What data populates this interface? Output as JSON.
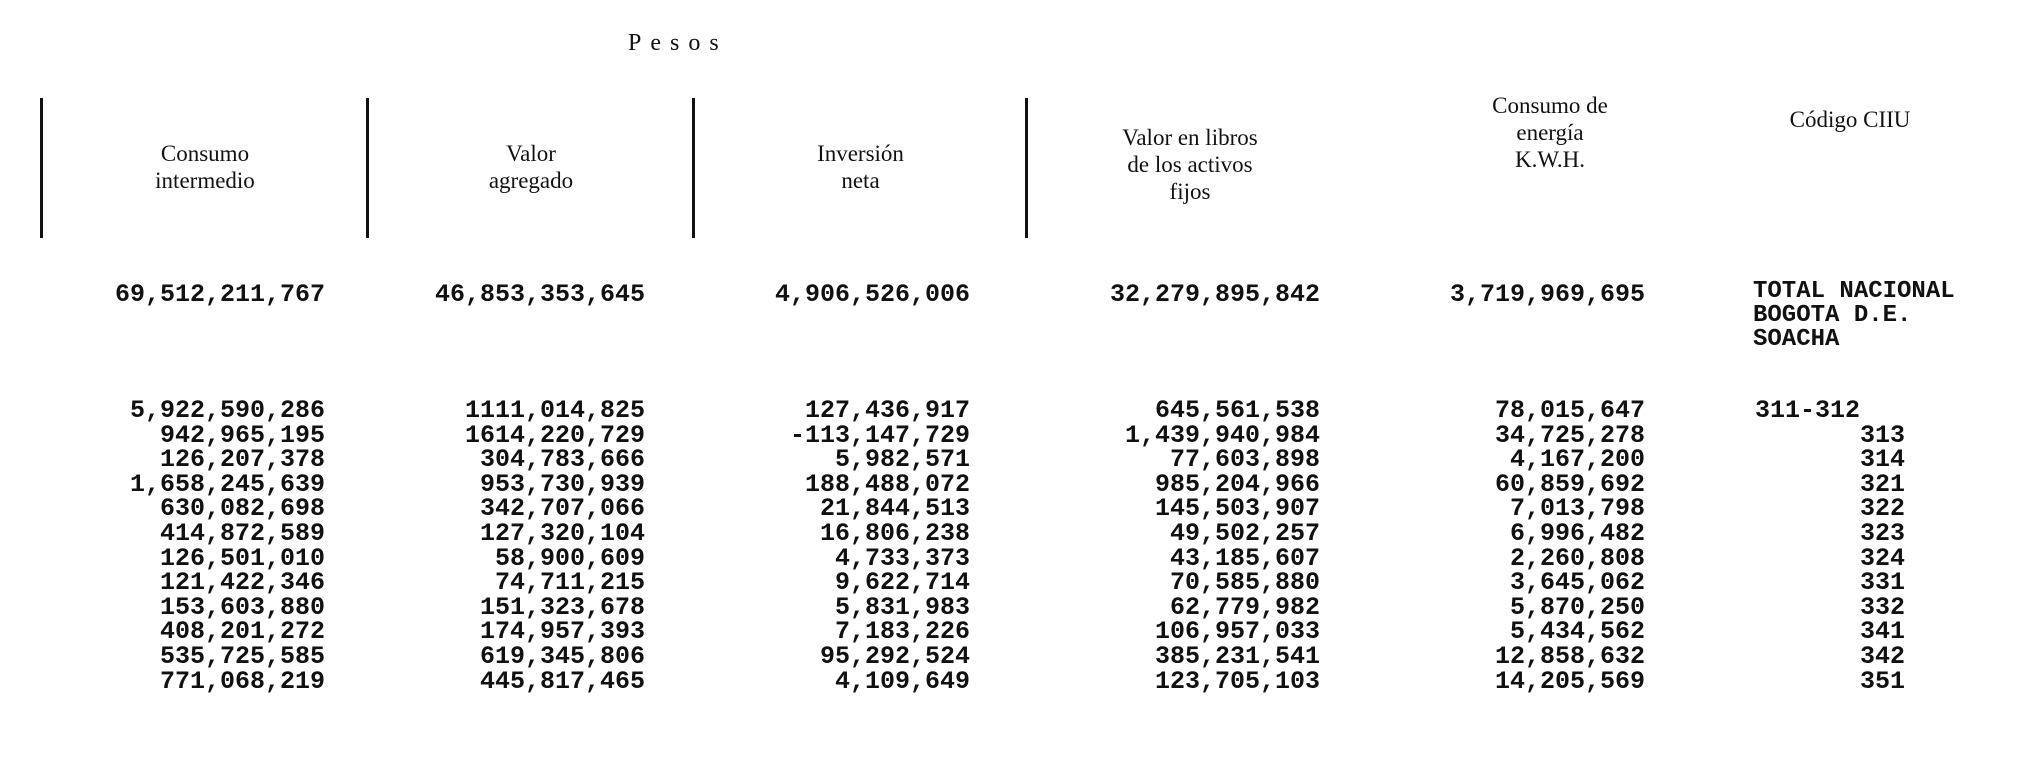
{
  "page": {
    "currency_heading": "Pesos"
  },
  "headers": [
    {
      "lines": [
        "Consumo",
        "intermedio"
      ]
    },
    {
      "lines": [
        "Valor",
        "agregado"
      ]
    },
    {
      "lines": [
        "Inversión",
        "neta"
      ]
    },
    {
      "lines": [
        "Valor en libros",
        "de los activos",
        "fijos"
      ]
    },
    {
      "lines": [
        "Consumo de",
        "energía",
        "K.W.H."
      ]
    },
    {
      "lines": [
        "Código CIIU"
      ]
    }
  ],
  "totals": {
    "consumo_intermedio": "69,512,211,767",
    "valor_agregado": "46,853,353,645",
    "inversion_neta": "4,906,526,006",
    "valor_libros": "32,279,895,842",
    "consumo_energia": "3,719,969,695",
    "labels": [
      "TOTAL NACIONAL",
      "BOGOTA D.E.",
      "SOACHA"
    ]
  },
  "table": {
    "consumo_intermedio": [
      "5,922,590,286",
      "942,965,195",
      "126,207,378",
      "1,658,245,639",
      "630,082,698",
      "414,872,589",
      "126,501,010",
      "121,422,346",
      "153,603,880",
      "408,201,272",
      "535,725,585",
      "771,068,219"
    ],
    "valor_agregado": [
      "1111,014,825",
      "1614,220,729",
      "304,783,666",
      "953,730,939",
      "342,707,066",
      "127,320,104",
      "58,900,609",
      "74,711,215",
      "151,323,678",
      "174,957,393",
      "619,345,806",
      "445,817,465"
    ],
    "inversion_neta": [
      "127,436,917",
      "-113,147,729",
      "5,982,571",
      "188,488,072",
      "21,844,513",
      "16,806,238",
      "4,733,373",
      "9,622,714",
      "5,831,983",
      "7,183,226",
      "95,292,524",
      "4,109,649"
    ],
    "valor_libros": [
      "645,561,538",
      "1,439,940,984",
      "77,603,898",
      "985,204,966",
      "145,503,907",
      "49,502,257",
      "43,185,607",
      "70,585,880",
      "62,779,982",
      "106,957,033",
      "385,231,541",
      "123,705,103"
    ],
    "consumo_energia": [
      "78,015,647",
      "34,725,278",
      "4,167,200",
      "60,859,692",
      "7,013,798",
      "6,996,482",
      "2,260,808",
      "3,645,062",
      "5,870,250",
      "5,434,562",
      "12,858,632",
      "14,205,569"
    ],
    "codigo_ciiu": [
      "311-312",
      "313",
      "314",
      "321",
      "322",
      "323",
      "324",
      "331",
      "332",
      "341",
      "342",
      "351"
    ]
  }
}
